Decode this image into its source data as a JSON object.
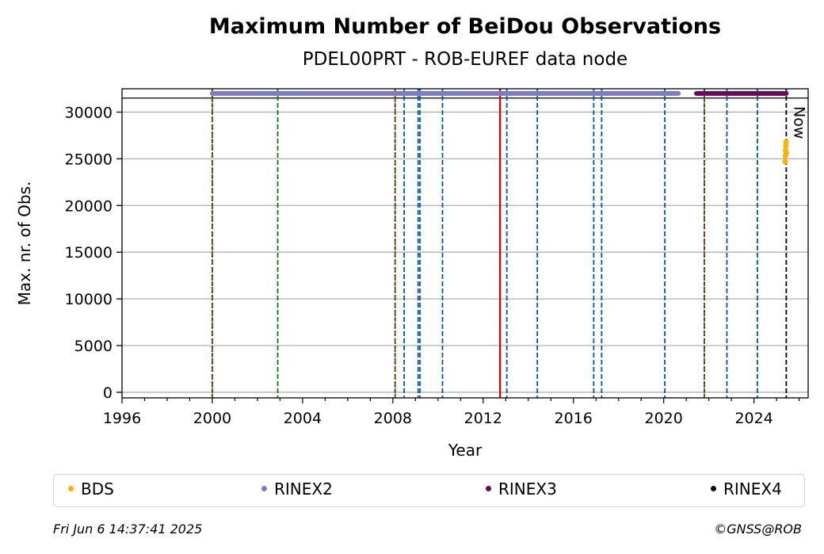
{
  "chart_data": {
    "type": "scatter",
    "title": "Maximum Number of BeiDou Observations",
    "subtitle": "PDEL00PRT - ROB-EUREF data node",
    "xlabel": "Year",
    "ylabel": "Max. nr. of Obs.",
    "xlim": [
      1996,
      2026.4
    ],
    "ylim": [
      -600,
      32500
    ],
    "xticks": [
      1996,
      2000,
      2004,
      2008,
      2012,
      2016,
      2020,
      2024
    ],
    "yticks": [
      0,
      5000,
      10000,
      15000,
      20000,
      25000,
      30000
    ],
    "grid": "horizontal",
    "legend_placement": "bottom",
    "now_label": "Now",
    "now_year": 2025.43,
    "series": [
      {
        "name": "BDS",
        "color": "#ffb000",
        "points": [
          [
            2025.38,
            24700
          ],
          [
            2025.39,
            25300
          ],
          [
            2025.4,
            25900
          ],
          [
            2025.41,
            26400
          ],
          [
            2025.42,
            26800
          ],
          [
            2025.43,
            25600
          ]
        ]
      },
      {
        "name": "RINEX2",
        "color": "#7d7dbd",
        "segments": [
          [
            2000.0,
            2020.65
          ]
        ],
        "y": 32000
      },
      {
        "name": "RINEX3",
        "color": "#6a0a5a",
        "segments": [
          [
            2021.45,
            2025.43
          ]
        ],
        "y": 32000
      },
      {
        "name": "RINEX4",
        "color": "#1a0010",
        "segments": [],
        "y": 32000
      }
    ],
    "hline": 31500,
    "vlines": [
      {
        "x": 2000.0,
        "color": "#008000",
        "style": "dashed"
      },
      {
        "x": 2000.0,
        "color": "#cc0000",
        "style": "dotted"
      },
      {
        "x": 2002.9,
        "color": "#008000",
        "style": "dashed"
      },
      {
        "x": 2008.1,
        "color": "#008000",
        "style": "dashed"
      },
      {
        "x": 2008.1,
        "color": "#cc0000",
        "style": "dotted"
      },
      {
        "x": 2008.5,
        "color": "#0055aa",
        "style": "dashed"
      },
      {
        "x": 2009.12,
        "color": "#0055aa",
        "style": "dashed"
      },
      {
        "x": 2009.2,
        "color": "#0055aa",
        "style": "dashed"
      },
      {
        "x": 2010.2,
        "color": "#0055aa",
        "style": "dashed"
      },
      {
        "x": 2012.75,
        "color": "#cc0000",
        "style": "solid"
      },
      {
        "x": 2013.05,
        "color": "#0055aa",
        "style": "dashed"
      },
      {
        "x": 2014.4,
        "color": "#0055aa",
        "style": "dashed"
      },
      {
        "x": 2016.9,
        "color": "#0055aa",
        "style": "dashed"
      },
      {
        "x": 2017.25,
        "color": "#0055aa",
        "style": "dashed"
      },
      {
        "x": 2020.05,
        "color": "#0055aa",
        "style": "dashed"
      },
      {
        "x": 2021.8,
        "color": "#008000",
        "style": "dashed"
      },
      {
        "x": 2021.8,
        "color": "#cc0000",
        "style": "dotted"
      },
      {
        "x": 2022.8,
        "color": "#0055aa",
        "style": "dashed"
      },
      {
        "x": 2024.15,
        "color": "#0055aa",
        "style": "dashed"
      },
      {
        "x": 2025.43,
        "color": "#000000",
        "style": "dashed"
      }
    ]
  },
  "legend": [
    {
      "label": "BDS",
      "color": "#ffb000"
    },
    {
      "label": "RINEX2",
      "color": "#7d7dbd"
    },
    {
      "label": "RINEX3",
      "color": "#6a0a5a"
    },
    {
      "label": "RINEX4",
      "color": "#1a0010"
    }
  ],
  "footer": {
    "timestamp": "Fri Jun  6 14:37:41 2025",
    "credit": "©GNSS@ROB"
  }
}
